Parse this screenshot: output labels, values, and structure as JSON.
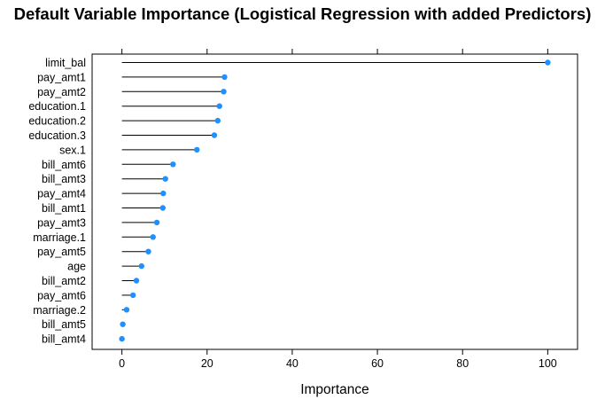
{
  "chart_data": {
    "type": "dot",
    "title": "Default Variable Importance (Logistical Regression with added Predictors)",
    "xlabel": "Importance",
    "ylabel": "",
    "xlim": [
      -7,
      107
    ],
    "xticks": [
      0,
      20,
      40,
      60,
      80,
      100
    ],
    "grid": false,
    "marker_color": "#1e90ff",
    "line_color": "#000000",
    "categories": [
      "limit_bal",
      "pay_amt1",
      "pay_amt2",
      "education.1",
      "education.2",
      "education.3",
      "sex.1",
      "bill_amt6",
      "bill_amt3",
      "pay_amt4",
      "bill_amt1",
      "pay_amt3",
      "marriage.1",
      "pay_amt5",
      "age",
      "bill_amt2",
      "pay_amt6",
      "marriage.2",
      "bill_amt5",
      "bill_amt4"
    ],
    "values": [
      100,
      24.1,
      23.9,
      22.9,
      22.5,
      21.7,
      17.6,
      12.0,
      10.2,
      9.7,
      9.6,
      8.2,
      7.3,
      6.2,
      4.6,
      3.4,
      2.6,
      1.1,
      0.2,
      0.0
    ]
  }
}
